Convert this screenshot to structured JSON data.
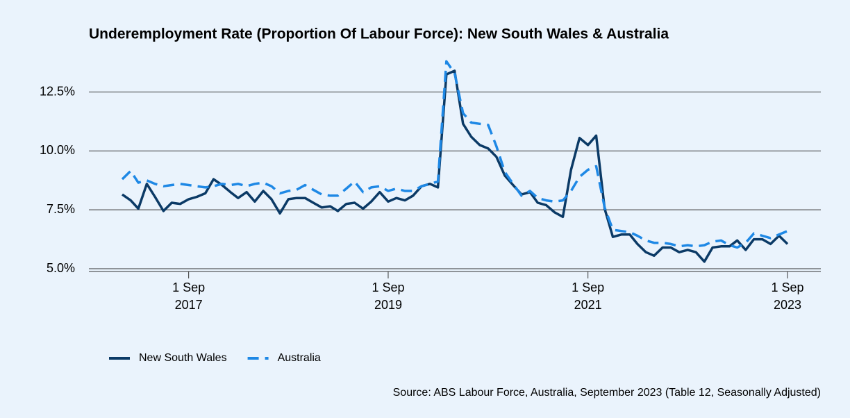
{
  "chart_data": {
    "type": "line",
    "title": "Underemployment Rate (Proportion Of Labour Force): New South Wales & Australia",
    "source": "Source: ABS Labour Force, Australia, September 2023 (Table 12, Seasonally Adjusted)",
    "x": [
      "2017-01-01",
      "2017-02-01",
      "2017-03-01",
      "2017-04-01",
      "2017-05-01",
      "2017-06-01",
      "2017-07-01",
      "2017-08-01",
      "2017-09-01",
      "2017-10-01",
      "2017-11-01",
      "2017-12-01",
      "2018-01-01",
      "2018-02-01",
      "2018-03-01",
      "2018-04-01",
      "2018-05-01",
      "2018-06-01",
      "2018-07-01",
      "2018-08-01",
      "2018-09-01",
      "2018-10-01",
      "2018-11-01",
      "2018-12-01",
      "2019-01-01",
      "2019-02-01",
      "2019-03-01",
      "2019-04-01",
      "2019-05-01",
      "2019-06-01",
      "2019-07-01",
      "2019-08-01",
      "2019-09-01",
      "2019-10-01",
      "2019-11-01",
      "2019-12-01",
      "2020-01-01",
      "2020-02-01",
      "2020-03-01",
      "2020-04-01",
      "2020-05-01",
      "2020-06-01",
      "2020-07-01",
      "2020-08-01",
      "2020-09-01",
      "2020-10-01",
      "2020-11-01",
      "2020-12-01",
      "2021-01-01",
      "2021-02-01",
      "2021-03-01",
      "2021-04-01",
      "2021-05-01",
      "2021-06-01",
      "2021-07-01",
      "2021-08-01",
      "2021-09-01",
      "2021-10-01",
      "2021-11-01",
      "2021-12-01",
      "2022-01-01",
      "2022-02-01",
      "2022-03-01",
      "2022-04-01",
      "2022-05-01",
      "2022-06-01",
      "2022-07-01",
      "2022-08-01",
      "2022-09-01",
      "2022-10-01",
      "2022-11-01",
      "2022-12-01",
      "2023-01-01",
      "2023-02-01",
      "2023-03-01",
      "2023-04-01",
      "2023-05-01",
      "2023-06-01",
      "2023-07-01",
      "2023-08-01",
      "2023-09-01"
    ],
    "series": [
      {
        "name": "New South Wales",
        "color": "#0b3a66",
        "dash": false,
        "values": [
          8.15,
          7.9,
          7.55,
          8.6,
          8.05,
          7.45,
          7.8,
          7.75,
          7.95,
          8.05,
          8.2,
          8.8,
          8.55,
          8.25,
          8.0,
          8.25,
          7.85,
          8.3,
          7.95,
          7.35,
          7.95,
          8.0,
          8.0,
          7.8,
          7.6,
          7.65,
          7.45,
          7.75,
          7.8,
          7.55,
          7.85,
          8.25,
          7.85,
          8.0,
          7.9,
          8.1,
          8.5,
          8.6,
          8.45,
          13.25,
          13.4,
          11.15,
          10.6,
          10.25,
          10.1,
          9.75,
          8.95,
          8.55,
          8.15,
          8.25,
          7.8,
          7.7,
          7.4,
          7.2,
          9.2,
          10.55,
          10.25,
          10.65,
          7.55,
          6.35,
          6.45,
          6.45,
          6.05,
          5.7,
          5.55,
          5.9,
          5.9,
          5.7,
          5.8,
          5.7,
          5.3,
          5.9,
          5.95,
          5.95,
          6.2,
          5.8,
          6.25,
          6.25,
          6.05,
          6.4,
          6.05
        ]
      },
      {
        "name": "Australia",
        "color": "#1e88e5",
        "dash": true,
        "values": [
          8.8,
          9.15,
          8.65,
          8.75,
          8.6,
          8.5,
          8.55,
          8.6,
          8.55,
          8.5,
          8.45,
          8.5,
          8.6,
          8.55,
          8.6,
          8.5,
          8.6,
          8.65,
          8.5,
          8.2,
          8.3,
          8.35,
          8.55,
          8.35,
          8.15,
          8.1,
          8.1,
          8.4,
          8.7,
          8.25,
          8.45,
          8.5,
          8.3,
          8.4,
          8.3,
          8.3,
          8.5,
          8.6,
          8.7,
          13.8,
          13.3,
          11.6,
          11.2,
          11.15,
          11.1,
          10.2,
          9.1,
          8.6,
          8.1,
          8.3,
          8.0,
          7.9,
          7.85,
          7.9,
          8.3,
          8.9,
          9.2,
          9.35,
          7.6,
          6.65,
          6.6,
          6.55,
          6.4,
          6.2,
          6.1,
          6.1,
          6.05,
          5.95,
          6.0,
          5.95,
          6.0,
          6.15,
          6.2,
          6.0,
          5.9,
          6.1,
          6.5,
          6.4,
          6.3,
          6.45,
          6.6
        ]
      }
    ],
    "xlim": [
      "2016-09-01",
      "2024-01-01"
    ],
    "xticks": [
      {
        "value": "2017-09-01",
        "label": "1 Sep 2017"
      },
      {
        "value": "2019-09-01",
        "label": "1 Sep 2019"
      },
      {
        "value": "2021-09-01",
        "label": "1 Sep 2021"
      },
      {
        "value": "2023-09-01",
        "label": "1 Sep 2023"
      }
    ],
    "ylim": [
      5,
      13.9
    ],
    "yticks": [
      {
        "value": 5,
        "label": "5.0%"
      },
      {
        "value": 7.5,
        "label": "7.5%"
      },
      {
        "value": 10,
        "label": "10.0%"
      },
      {
        "value": 12.5,
        "label": "12.5%"
      }
    ],
    "grid": true,
    "legend": "bottom"
  }
}
